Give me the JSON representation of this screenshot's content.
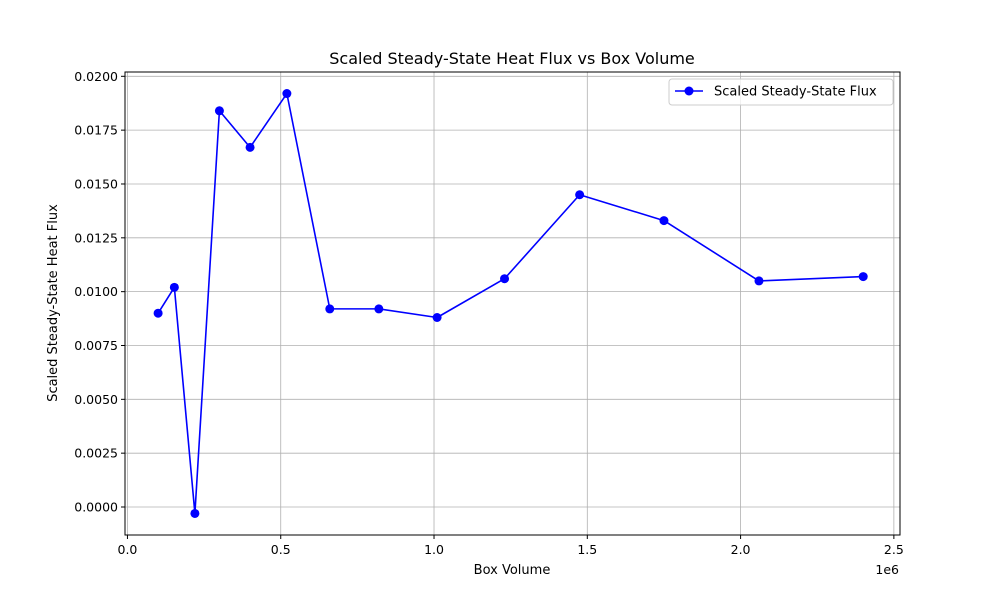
{
  "chart_data": {
    "type": "line",
    "title": "Scaled Steady-State Heat Flux vs Box Volume",
    "xlabel": "Box Volume",
    "ylabel": "Scaled Steady-State Heat Flux",
    "x_offset_label": "1e6",
    "xlim": [
      -0.008,
      2.52
    ],
    "ylim": [
      -0.0013,
      0.0202
    ],
    "x_ticks": [
      0.0,
      0.5,
      1.0,
      1.5,
      2.0,
      2.5
    ],
    "x_tick_labels": [
      "0.0",
      "0.5",
      "1.0",
      "1.5",
      "2.0",
      "2.5"
    ],
    "y_ticks": [
      0.0,
      0.0025,
      0.005,
      0.0075,
      0.01,
      0.0125,
      0.015,
      0.0175,
      0.02
    ],
    "y_tick_labels": [
      "0.0000",
      "0.0025",
      "0.0050",
      "0.0075",
      "0.0100",
      "0.0125",
      "0.0150",
      "0.0175",
      "0.0200"
    ],
    "grid": true,
    "legend_position": "top-right",
    "series": [
      {
        "name": "Scaled Steady-State Flux",
        "color": "#0000ff",
        "marker": "circle",
        "x": [
          0.1,
          0.153,
          0.22,
          0.3,
          0.4,
          0.52,
          0.66,
          0.82,
          1.01,
          1.23,
          1.475,
          1.75,
          2.06,
          2.4
        ],
        "y": [
          0.009,
          0.0102,
          -0.0003,
          0.0184,
          0.0167,
          0.0192,
          0.0092,
          0.0092,
          0.0088,
          0.0106,
          0.0145,
          0.0133,
          0.0105,
          0.0107
        ]
      }
    ]
  }
}
